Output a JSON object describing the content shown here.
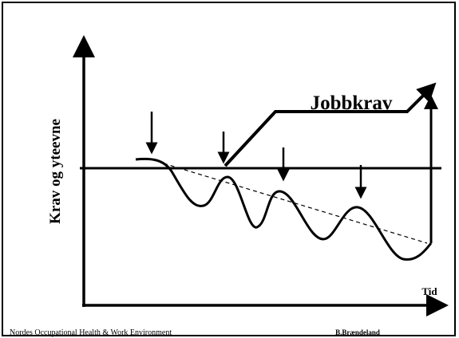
{
  "diagram": {
    "curve_label": "Jobbkrav",
    "y_axis_label": "Krav og yteevne",
    "x_axis_label": "Tid"
  },
  "footer": {
    "left": "Nordes Occupational Health & Work Environment",
    "right": "B.Brændeland"
  }
}
